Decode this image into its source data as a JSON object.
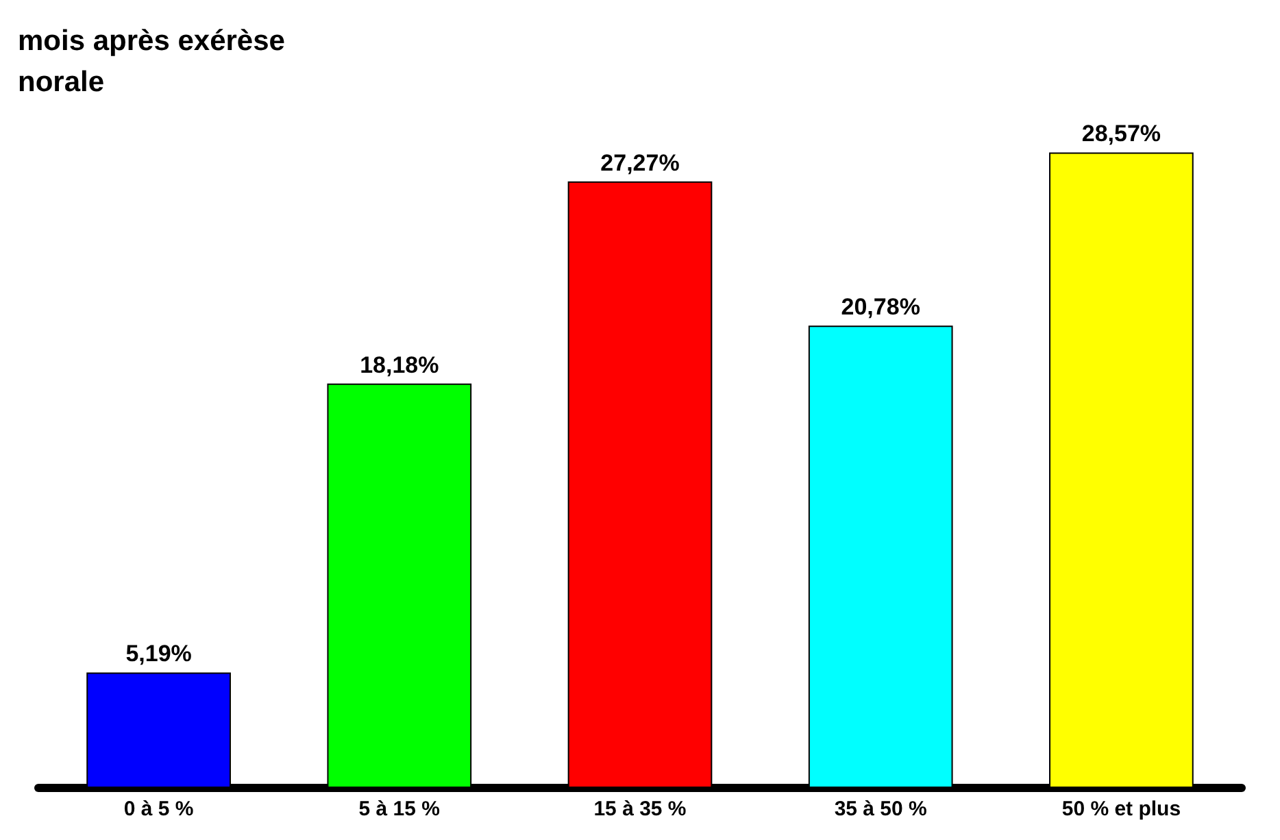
{
  "chart_data": {
    "type": "bar",
    "title": "mois après exérèse\nnorale",
    "categories": [
      "0 à 5 %",
      "5 à 15 %",
      "15 à 35 %",
      "35 à 50 %",
      "50 % et plus"
    ],
    "values": [
      5.19,
      18.18,
      27.27,
      20.78,
      28.57
    ],
    "value_labels": [
      "5,19%",
      "18,18%",
      "27,27%",
      "20,78%",
      "28,57%"
    ],
    "colors": [
      "#0000ff",
      "#00ff00",
      "#ff0000",
      "#00ffff",
      "#ffff00"
    ]
  }
}
